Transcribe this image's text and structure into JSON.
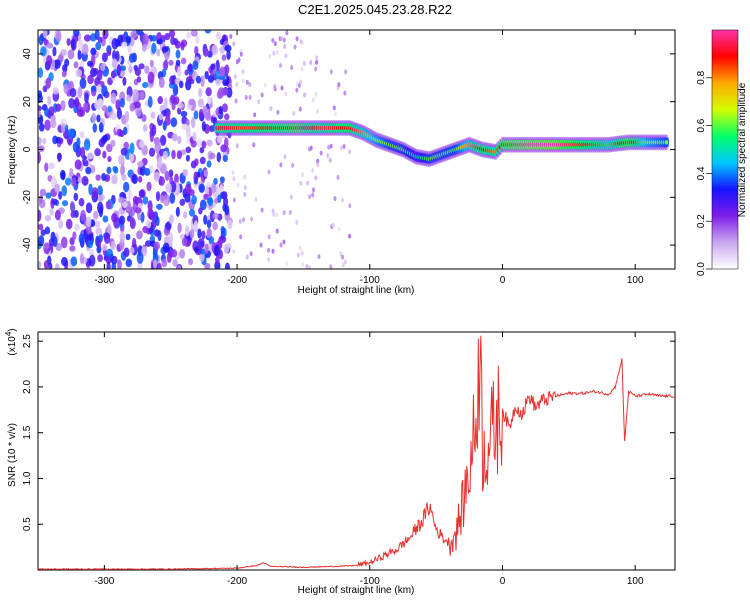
{
  "title": "C2E1.2025.045.23.28.R22",
  "chart_data": [
    {
      "type": "heatmap",
      "xlabel": "Height of straight line (km)",
      "ylabel": "Frequency (Hz)",
      "xlim": [
        -350,
        130
      ],
      "ylim": [
        -50,
        50
      ],
      "xticks": [
        -300,
        -200,
        -100,
        0,
        100
      ],
      "yticks": [
        -40,
        -20,
        0,
        20,
        40
      ],
      "colorbar": {
        "label": "Normalized spectral amplitude",
        "ticks": [
          "0.0",
          "0.2",
          "0.4",
          "0.6",
          "0.8"
        ],
        "range": [
          0,
          1
        ],
        "colors": [
          "#ffffff",
          "#c9a8f0",
          "#7f1de9",
          "#1414ff",
          "#00c8ff",
          "#00ff66",
          "#d4ff00",
          "#ffaa00",
          "#ff0000",
          "#ff33aa"
        ]
      },
      "ridge": [
        {
          "x": -215,
          "y": 9,
          "v": 0.9
        },
        {
          "x": -195,
          "y": 9,
          "v": 0.85
        },
        {
          "x": -175,
          "y": 9,
          "v": 0.9
        },
        {
          "x": -155,
          "y": 9,
          "v": 0.95
        },
        {
          "x": -135,
          "y": 9,
          "v": 0.85
        },
        {
          "x": -115,
          "y": 9,
          "v": 0.9
        },
        {
          "x": -105,
          "y": 7,
          "v": 0.8
        },
        {
          "x": -95,
          "y": 4,
          "v": 0.7
        },
        {
          "x": -85,
          "y": 2,
          "v": 0.6
        },
        {
          "x": -75,
          "y": 0,
          "v": 0.6
        },
        {
          "x": -65,
          "y": -3,
          "v": 0.5
        },
        {
          "x": -55,
          "y": -4,
          "v": 0.6
        },
        {
          "x": -45,
          "y": -2,
          "v": 0.6
        },
        {
          "x": -35,
          "y": 0,
          "v": 0.6
        },
        {
          "x": -25,
          "y": 2,
          "v": 0.8
        },
        {
          "x": -15,
          "y": 0,
          "v": 0.9
        },
        {
          "x": -5,
          "y": -1,
          "v": 0.8
        },
        {
          "x": 0,
          "y": 2,
          "v": 0.95
        },
        {
          "x": 20,
          "y": 2,
          "v": 1.0
        },
        {
          "x": 40,
          "y": 2,
          "v": 1.0
        },
        {
          "x": 60,
          "y": 2,
          "v": 0.9
        },
        {
          "x": 80,
          "y": 2,
          "v": 0.8
        },
        {
          "x": 95,
          "y": 3,
          "v": 0.95
        },
        {
          "x": 110,
          "y": 3,
          "v": 0.7
        },
        {
          "x": 125,
          "y": 3,
          "v": 0.6
        }
      ]
    },
    {
      "type": "line",
      "xlabel": "Height of straight line (km)",
      "ylabel": "SNR (10 * v/v)",
      "yscale_label": "(x10",
      "yscale_exp": "4",
      "xlim": [
        -350,
        130
      ],
      "ylim": [
        0,
        2.6
      ],
      "xticks": [
        -300,
        -200,
        -100,
        0,
        100
      ],
      "yticks": [
        "0.5",
        "1.0",
        "1.5",
        "2.0",
        "2.5"
      ],
      "color": "#e8312f",
      "series": [
        {
          "x": [
            -350,
            -300,
            -250,
            -200,
            -185,
            -180,
            -175,
            -150,
            -125,
            -110,
            -100,
            -90,
            -80,
            -70,
            -60,
            -55,
            -50,
            -45,
            -40,
            -35,
            -30,
            -25,
            -20,
            -17,
            -15,
            -10,
            -5,
            0,
            5,
            10,
            15,
            20,
            25,
            30,
            40,
            50,
            60,
            70,
            80,
            85,
            90,
            92,
            95,
            100,
            110,
            120,
            130
          ],
          "y": [
            0.01,
            0.01,
            0.01,
            0.02,
            0.05,
            0.08,
            0.04,
            0.03,
            0.04,
            0.05,
            0.08,
            0.15,
            0.22,
            0.35,
            0.55,
            0.7,
            0.45,
            0.35,
            0.3,
            0.4,
            0.7,
            1.1,
            1.6,
            2.5,
            1.3,
            1.4,
            1.6,
            1.75,
            1.55,
            1.8,
            1.7,
            1.9,
            1.78,
            1.85,
            1.9,
            1.93,
            1.93,
            1.95,
            1.92,
            2.0,
            2.3,
            1.4,
            1.95,
            1.9,
            1.92,
            1.9,
            1.9
          ]
        }
      ]
    }
  ]
}
